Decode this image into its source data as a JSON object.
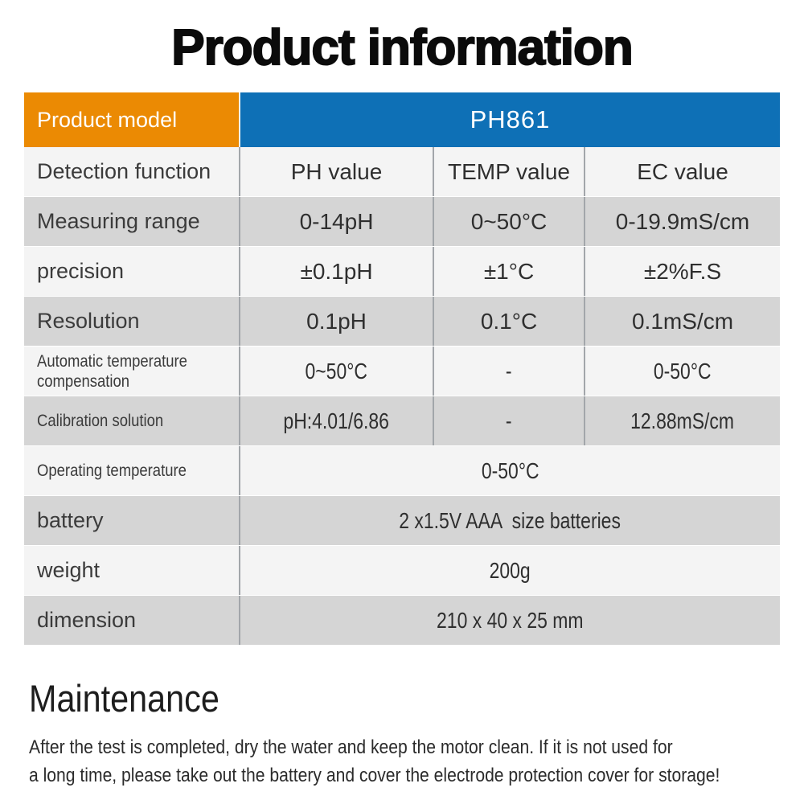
{
  "page": {
    "title": "Product information"
  },
  "colors": {
    "header_orange": "#EB8A03",
    "header_blue": "#0E70B6",
    "row_light": "#F4F4F4",
    "row_dark": "#D5D5D5"
  },
  "table": {
    "header": {
      "label": "Product model",
      "value": "PH861"
    },
    "rows": [
      {
        "label": "Detection function",
        "values": [
          "PH value",
          "TEMP value",
          "EC value"
        ]
      },
      {
        "label": "Measuring range",
        "values": [
          "0-14pH",
          "0~50°C",
          "0-19.9mS/cm"
        ]
      },
      {
        "label": "precision",
        "values": [
          "±0.1pH",
          "±1°C",
          "±2%F.S"
        ]
      },
      {
        "label": "Resolution",
        "values": [
          "0.1pH",
          "0.1°C",
          "0.1mS/cm"
        ]
      },
      {
        "label": "Automatic temperature compensation",
        "values": [
          "0~50°C",
          "-",
          "0-50°C"
        ]
      },
      {
        "label": "Calibration solution",
        "values": [
          "pH:4.01/6.86",
          "-",
          "12.88mS/cm"
        ]
      },
      {
        "label": "Operating temperature",
        "values": [
          "0-50°C"
        ]
      },
      {
        "label": "battery",
        "values": [
          "2 x1.5V AAA  size batteries"
        ]
      },
      {
        "label": "weight",
        "values": [
          "200g"
        ]
      },
      {
        "label": "dimension",
        "values": [
          "210 x 40 x 25 mm"
        ]
      }
    ]
  },
  "maintenance": {
    "heading": "Maintenance",
    "body_lines": [
      "After the test is completed, dry the water and keep the motor clean. If it is not used for",
      "a long time, please take out the battery and cover the electrode protection cover for storage!"
    ]
  }
}
